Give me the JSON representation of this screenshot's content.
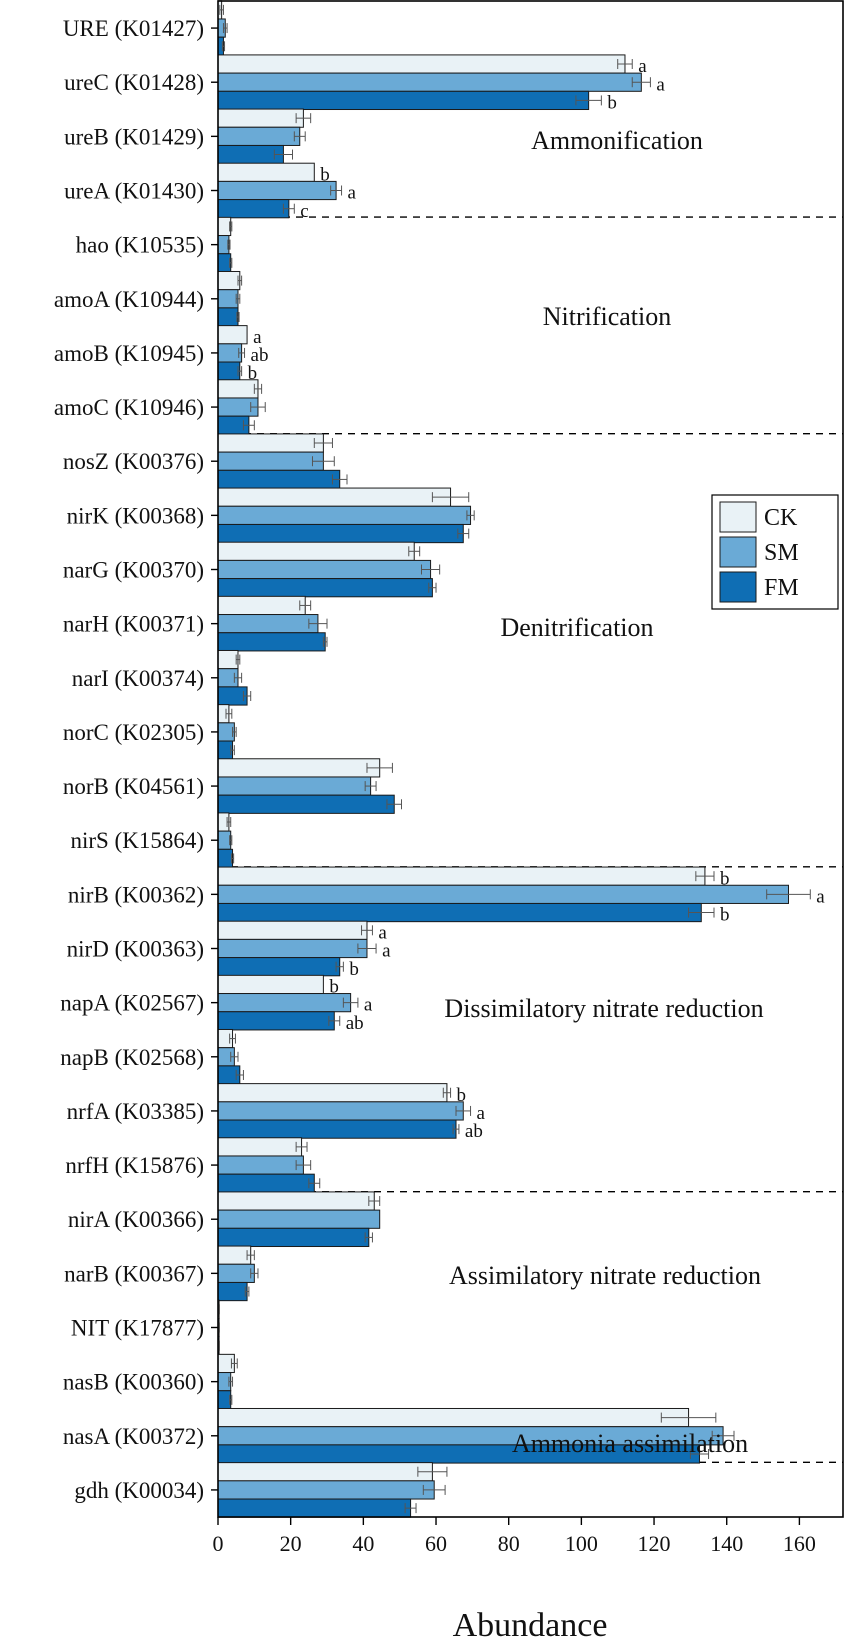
{
  "chart_data": {
    "type": "bar",
    "orientation": "horizontal",
    "xlabel": "Abundance",
    "xlim": [
      0,
      172
    ],
    "xticks": [
      0,
      20,
      40,
      60,
      80,
      100,
      120,
      140,
      160
    ],
    "legend": {
      "position": "right",
      "entries": [
        "CK",
        "SM",
        "FM"
      ]
    },
    "colors": {
      "CK": "#e9f2f6",
      "SM": "#6aaad6",
      "FM": "#0f6eb4"
    },
    "categories": [
      "URE (K01427)",
      "ureC (K01428)",
      "ureB (K01429)",
      "ureA (K01430)",
      "hao (K10535)",
      "amoA (K10944)",
      "amoB (K10945)",
      "amoC (K10946)",
      "nosZ (K00376)",
      "nirK (K00368)",
      "narG (K00370)",
      "narH (K00371)",
      "narI (K00374)",
      "norC (K02305)",
      "norB (K04561)",
      "nirS (K15864)",
      "nirB (K00362)",
      "nirD (K00363)",
      "napA (K02567)",
      "napB (K02568)",
      "nrfA (K03385)",
      "nrfH (K15876)",
      "nirA (K00366)",
      "narB (K00367)",
      "NIT (K17877)",
      "nasB (K00360)",
      "nasA (K00372)",
      "gdh (K00034)"
    ],
    "series": [
      {
        "name": "CK",
        "values": [
          1,
          112,
          23.5,
          26.5,
          3.5,
          6,
          8,
          11,
          29,
          64,
          54,
          24,
          5.5,
          3,
          44.5,
          3,
          134,
          41,
          29,
          4,
          63,
          23,
          43,
          9,
          0.3,
          4.5,
          129.5,
          59
        ],
        "errors": [
          0.5,
          2,
          2,
          0,
          0.3,
          0.5,
          0,
          1,
          2.5,
          5,
          1.5,
          1.5,
          0.5,
          0.8,
          3.5,
          0.5,
          2.5,
          1.5,
          0,
          0.8,
          1,
          1.5,
          1.5,
          1,
          0.1,
          0.8,
          7.5,
          4
        ]
      },
      {
        "name": "SM",
        "values": [
          2,
          116.5,
          22.5,
          32.5,
          3,
          5.5,
          6.5,
          11,
          29,
          69.5,
          58.5,
          27.5,
          5.5,
          4.5,
          42,
          3.5,
          157,
          41,
          36.5,
          4.5,
          67.5,
          23.5,
          44.5,
          10,
          0.3,
          3.5,
          139,
          59.5
        ],
        "errors": [
          0.5,
          2.5,
          1.5,
          1.5,
          0.3,
          0.5,
          0.8,
          2,
          3,
          1,
          2.5,
          2.5,
          1,
          0.5,
          1.5,
          0.3,
          6,
          2.5,
          2,
          1,
          2,
          2,
          0,
          1,
          0.1,
          0.5,
          3,
          3
        ]
      },
      {
        "name": "FM",
        "values": [
          1.5,
          102,
          18,
          19.5,
          3.5,
          5.5,
          6,
          8.5,
          33.5,
          67.5,
          59,
          29.5,
          8,
          4,
          48.5,
          4,
          133,
          33.5,
          32,
          6,
          65.5,
          26.5,
          41.5,
          8,
          0.3,
          3.5,
          132.5,
          53
        ],
        "errors": [
          0.3,
          3.5,
          2.5,
          1.5,
          0.3,
          0.3,
          0.5,
          1.5,
          2,
          1.5,
          1,
          0.5,
          1,
          0.5,
          2,
          0.3,
          3.5,
          1,
          1.5,
          1,
          0.8,
          1.5,
          1,
          0.5,
          0.1,
          0.3,
          2.5,
          1.5
        ]
      }
    ],
    "significance": [
      {
        "category": "ureC (K01428)",
        "labels": [
          "a",
          "a",
          "b"
        ]
      },
      {
        "category": "ureA (K01430)",
        "labels": [
          "b",
          "a",
          "c"
        ]
      },
      {
        "category": "amoB (K10945)",
        "labels": [
          "a",
          "ab",
          "b"
        ]
      },
      {
        "category": "nirB (K00362)",
        "labels": [
          "b",
          "a",
          "b"
        ]
      },
      {
        "category": "nirD (K00363)",
        "labels": [
          "a",
          "a",
          "b"
        ]
      },
      {
        "category": "napA (K02567)",
        "labels": [
          "b",
          "a",
          "ab"
        ]
      },
      {
        "category": "nrfA (K03385)",
        "labels": [
          "b",
          "a",
          "ab"
        ]
      }
    ],
    "groups": [
      {
        "label": "Ammonification",
        "from": 0,
        "to": 3
      },
      {
        "label": "Nitrification",
        "from": 4,
        "to": 7
      },
      {
        "label": "Denitrification",
        "from": 8,
        "to": 15
      },
      {
        "label": "Dissimilatory nitrate reduction",
        "from": 16,
        "to": 21
      },
      {
        "label": "Assimilatory nitrate reduction",
        "from": 22,
        "to": 26
      },
      {
        "label": "Ammonia assimilation",
        "from": 27,
        "to": 27
      }
    ]
  }
}
